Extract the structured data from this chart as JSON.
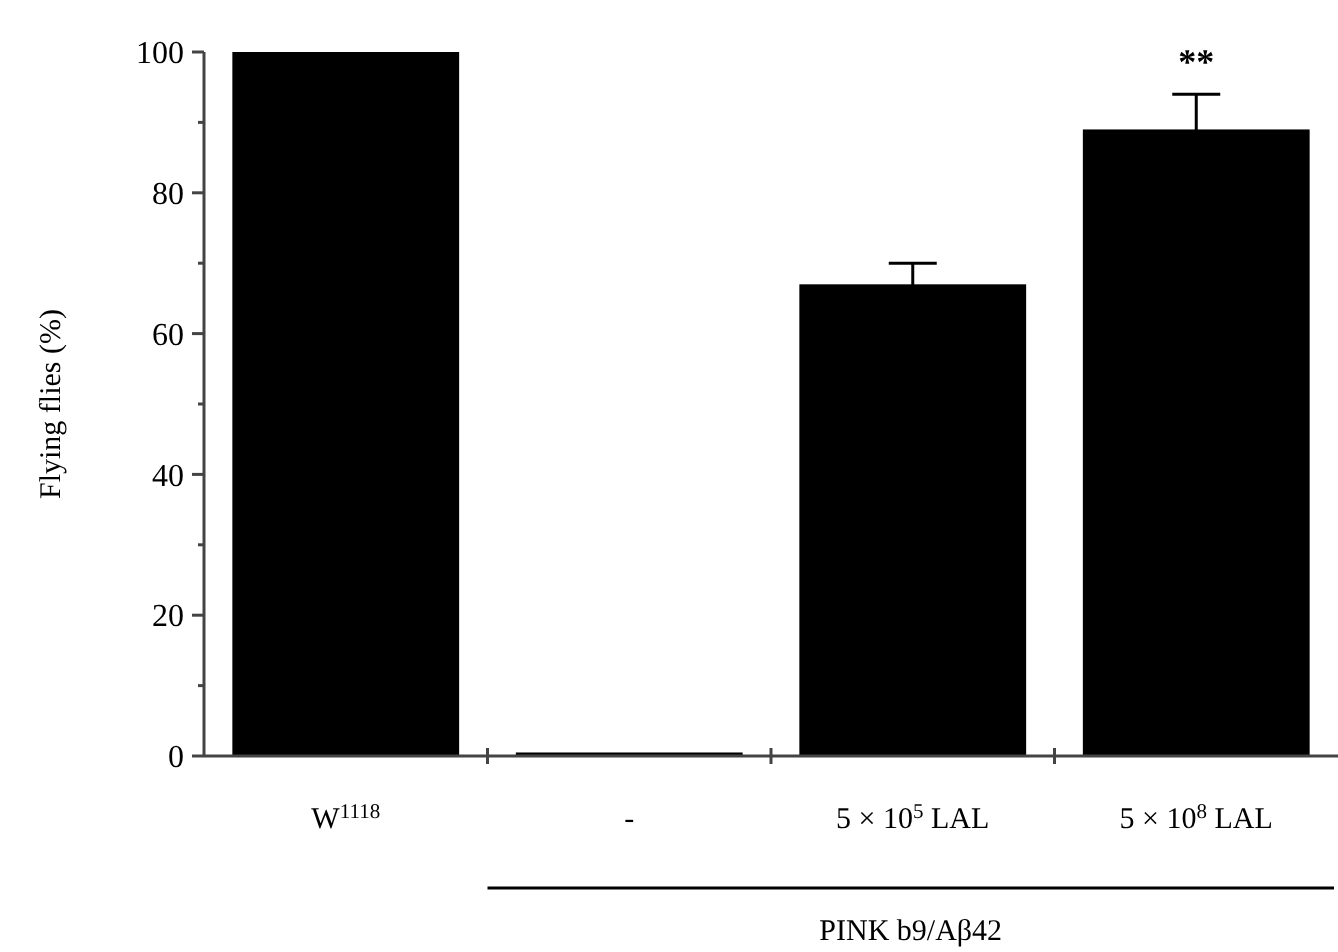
{
  "chart_data": {
    "type": "bar",
    "ylabel": "Flying flies (%)",
    "categories": [
      "W$^{1118}$",
      "-",
      "5 × 10$^{5}$ LAL",
      "5 × 10$^{8}$ LAL"
    ],
    "values": [
      100,
      0.5,
      67,
      89
    ],
    "errors": [
      null,
      null,
      3,
      5
    ],
    "color": "#000000",
    "ylim": [
      0,
      100
    ],
    "yticks": [
      0,
      {
        "value": 10,
        "label": null
      },
      20,
      {
        "value": 30,
        "label": null
      },
      40,
      {
        "value": 50,
        "label": null
      },
      60,
      {
        "value": 70,
        "label": null
      },
      80,
      {
        "value": 90,
        "label": null
      },
      100
    ],
    "grid": false,
    "annotations": [
      {
        "text": "**",
        "x": "5 × 10$^{8}$ LAL",
        "y": 94
      },
      "PINK b9/Aβ42"
    ]
  }
}
